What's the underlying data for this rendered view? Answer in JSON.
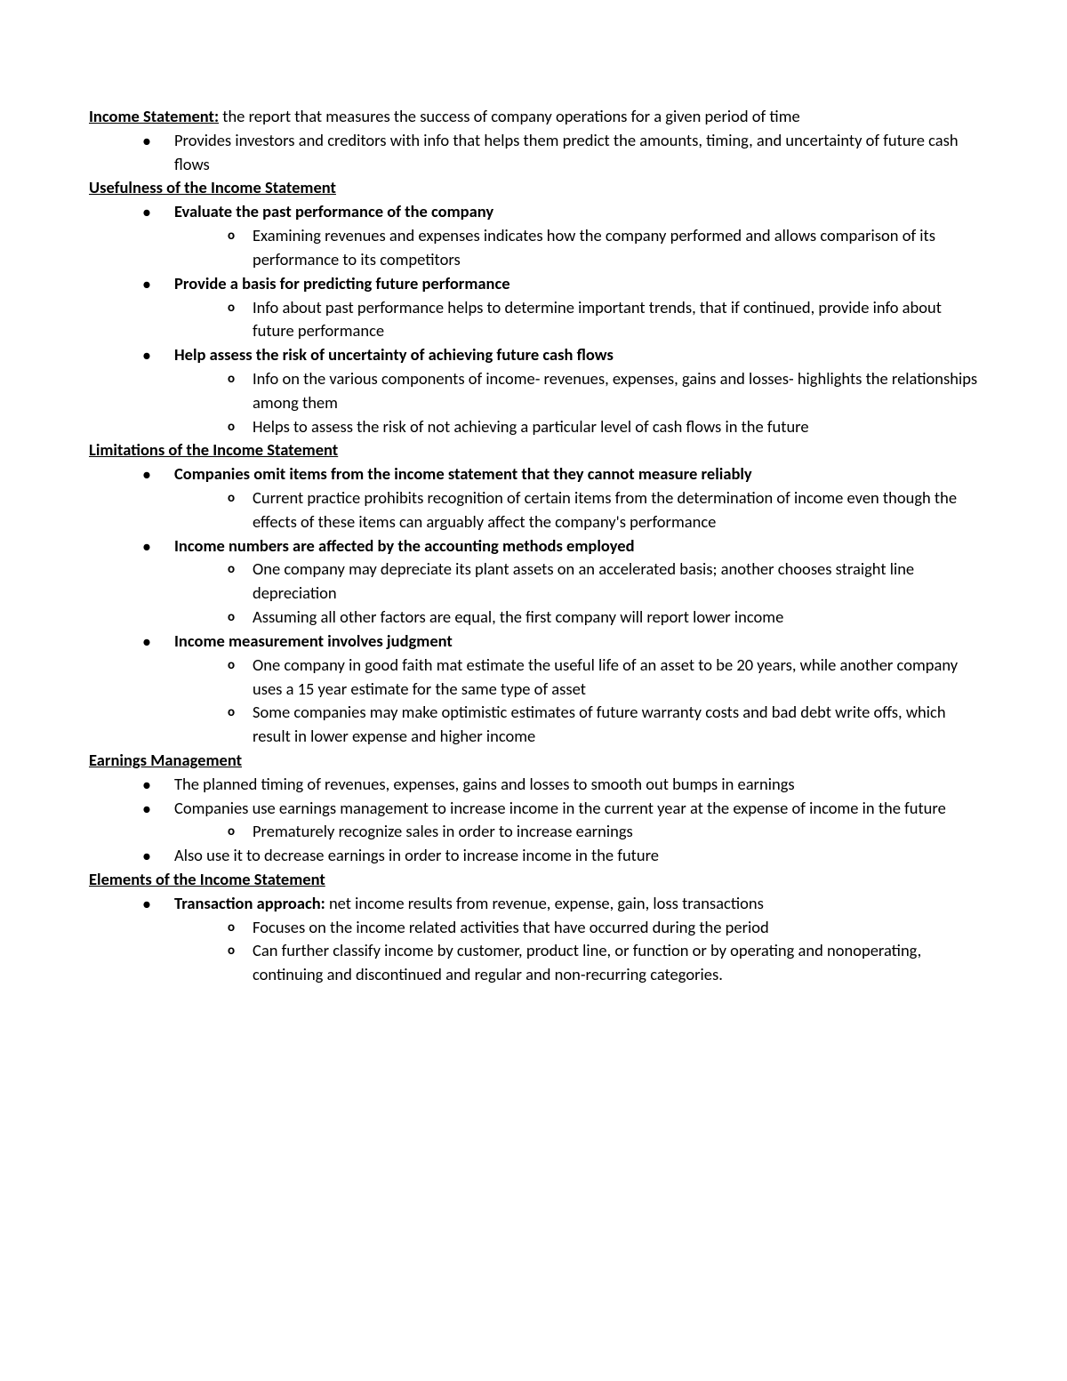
{
  "s1": {
    "title": "Income Statement:",
    "def": " the report that measures the success of company operations for a given period of time",
    "b1": "Provides investors and creditors with info that helps them predict the amounts, timing, and uncertainty of future cash flows"
  },
  "s2": {
    "title": "Usefulness of the Income Statement",
    "i1": {
      "t": "Evaluate the past performance of the company",
      "s1": "Examining revenues and expenses indicates how the company performed and allows comparison of its performance to its competitors"
    },
    "i2": {
      "t": "Provide a basis for predicting future performance",
      "s1": "Info about past performance helps to determine important trends, that if continued, provide info about future performance"
    },
    "i3": {
      "t": "Help assess the risk of uncertainty of achieving future cash flows",
      "s1": "Info on the various components of income- revenues, expenses, gains and losses- highlights the relationships among them",
      "s2": "Helps to assess the risk of not achieving a particular level of cash flows in the future"
    }
  },
  "s3": {
    "title": "Limitations of the Income Statement",
    "i1": {
      "t": "Companies omit items from the income statement that they cannot measure reliably",
      "s1": "Current practice prohibits recognition of certain items from the determination of income even though the effects of these items can arguably affect the company's performance"
    },
    "i2": {
      "t": "Income numbers are affected by the accounting methods employed",
      "s1": "One company may depreciate its plant assets on an accelerated basis; another chooses straight line depreciation",
      "s2": "Assuming all other factors are equal, the first company will report lower income"
    },
    "i3": {
      "t": "Income measurement involves judgment",
      "s1": "One company in good faith mat estimate the useful life of an asset to be 20 years, while another company uses a 15 year estimate for the same type of asset",
      "s2": "Some companies may make optimistic estimates of future warranty costs and bad debt write offs, which result in lower expense and higher income"
    }
  },
  "s4": {
    "title": "Earnings Management",
    "b1": "The planned timing of revenues, expenses, gains and losses to smooth out bumps in earnings",
    "b2": "Companies use earnings management to increase income in the current year at the expense of income in the future",
    "b2s1": "Prematurely recognize sales in order to increase earnings",
    "b3": "Also use it to decrease earnings in order to increase income in the future"
  },
  "s5": {
    "title": "Elements of the Income Statement",
    "i1": {
      "tlabel": "Transaction approach:",
      "tdef": " net income results from revenue, expense, gain, loss transactions",
      "s1": "Focuses on the income related activities that have occurred during the period",
      "s2": "Can further classify income by customer, product line, or function or by operating and nonoperating, continuing and discontinued and regular and non-recurring categories."
    }
  }
}
